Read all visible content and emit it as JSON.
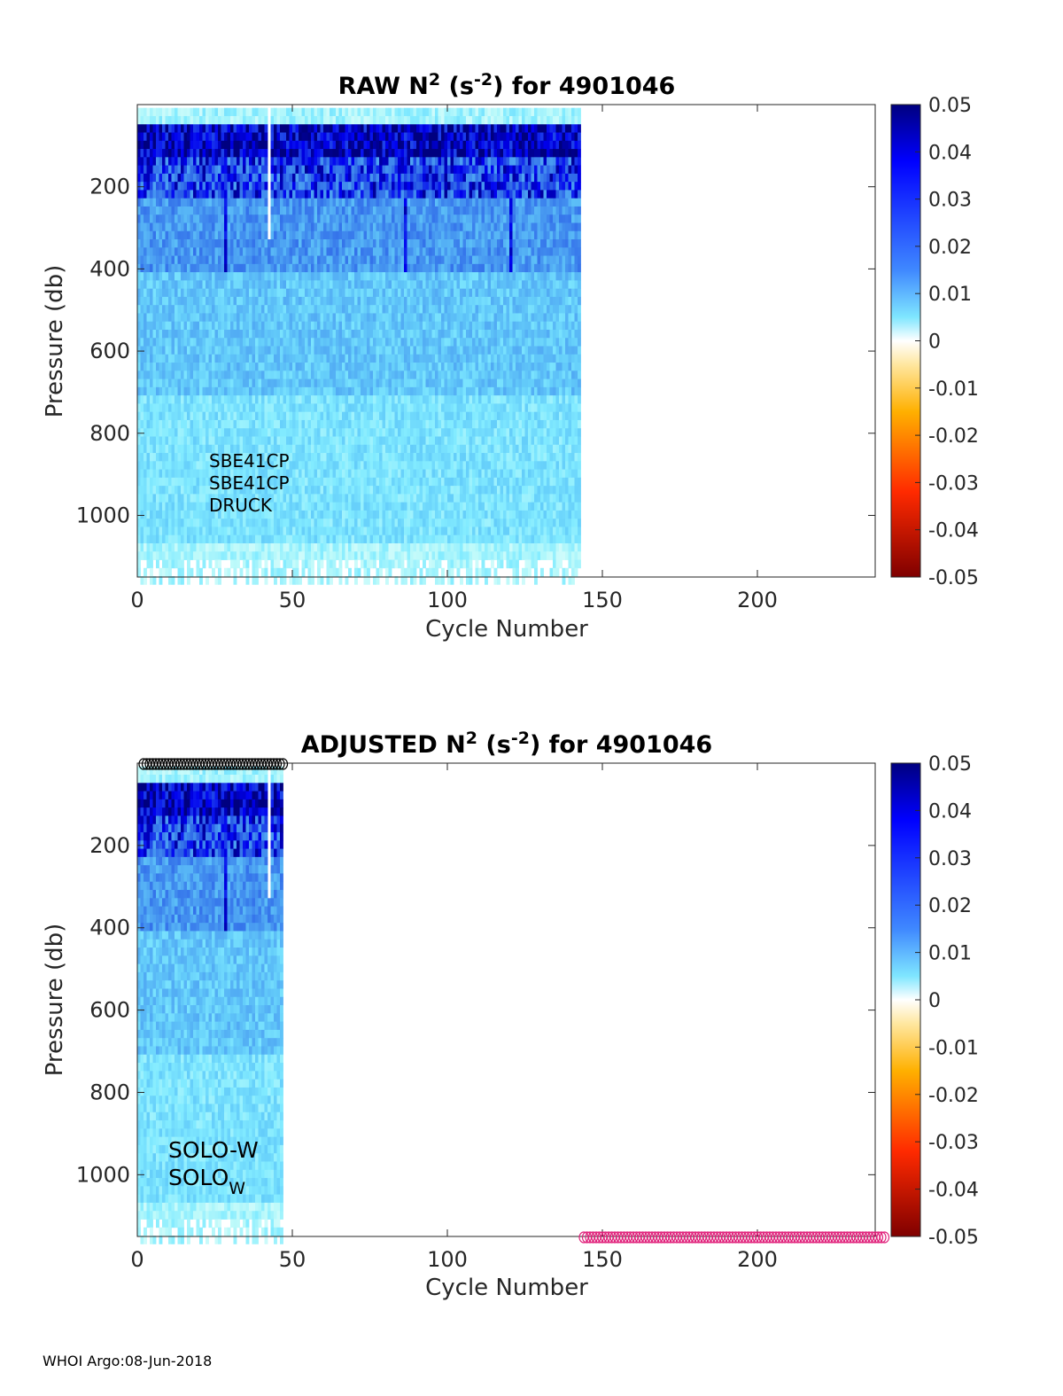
{
  "footer_text": "WHOI Argo:08-Jun-2018",
  "chart_data": [
    {
      "type": "heatmap",
      "title_prefix": "RAW N",
      "title_sup1": "2",
      "title_mid": " (s",
      "title_sup2": "-2",
      "title_suffix": ") for 4901046",
      "xlabel": "Cycle Number",
      "ylabel": "Pressure (db)",
      "xlim": [
        0,
        238
      ],
      "ylim": [
        0,
        1150
      ],
      "y_reversed": true,
      "xticks": [
        0,
        50,
        100,
        150,
        200
      ],
      "xtick_labels": [
        "0",
        "50",
        "100",
        "150",
        "200"
      ],
      "yticks": [
        200,
        400,
        600,
        800,
        1000
      ],
      "ytick_labels": [
        "200",
        "400",
        "600",
        "800",
        "1000"
      ],
      "data_cycle_range": [
        0,
        143
      ],
      "missing_cycles": [
        42
      ],
      "missing_cycle_max_pressure": 320,
      "colorbar": {
        "range": [
          -0.05,
          0.05
        ],
        "ticks": [
          0.05,
          0.04,
          0.03,
          0.02,
          0.01,
          0,
          -0.01,
          -0.02,
          -0.03,
          -0.04,
          -0.05
        ],
        "tick_labels": [
          "0.05",
          "0.04",
          "0.03",
          "0.02",
          "0.01",
          "0",
          "-0.01",
          "-0.02",
          "-0.03",
          "-0.04",
          "-0.05"
        ]
      },
      "annotations": [
        "SBE41CP",
        "SBE41CP",
        "DRUCK"
      ],
      "grid": false
    },
    {
      "type": "heatmap",
      "title_prefix": "ADJUSTED N",
      "title_sup1": "2",
      "title_mid": " (s",
      "title_sup2": "-2",
      "title_suffix": ") for 4901046",
      "xlabel": "Cycle Number",
      "ylabel": "Pressure (db)",
      "xlim": [
        0,
        238
      ],
      "ylim": [
        0,
        1150
      ],
      "y_reversed": true,
      "xticks": [
        0,
        50,
        100,
        150,
        200
      ],
      "xtick_labels": [
        "0",
        "50",
        "100",
        "150",
        "200"
      ],
      "yticks": [
        200,
        400,
        600,
        800,
        1000
      ],
      "ytick_labels": [
        "200",
        "400",
        "600",
        "800",
        "1000"
      ],
      "data_cycle_range": [
        0,
        47
      ],
      "missing_cycles": [
        42
      ],
      "missing_cycle_max_pressure": 320,
      "top_markers": {
        "cycles": [
          2,
          47
        ],
        "color": "#000000",
        "position": "top"
      },
      "bottom_markers": {
        "cycles": [
          144,
          241
        ],
        "color": "#e0207a",
        "position": "bottom"
      },
      "colorbar": {
        "range": [
          -0.05,
          0.05
        ],
        "ticks": [
          0.05,
          0.04,
          0.03,
          0.02,
          0.01,
          0,
          -0.01,
          -0.02,
          -0.03,
          -0.04,
          -0.05
        ],
        "tick_labels": [
          "0.05",
          "0.04",
          "0.03",
          "0.02",
          "0.01",
          "0",
          "-0.01",
          "-0.02",
          "-0.03",
          "-0.04",
          "-0.05"
        ]
      },
      "annotations": [
        "SOLO-W",
        "SOLO",
        "W"
      ],
      "grid": false
    }
  ]
}
